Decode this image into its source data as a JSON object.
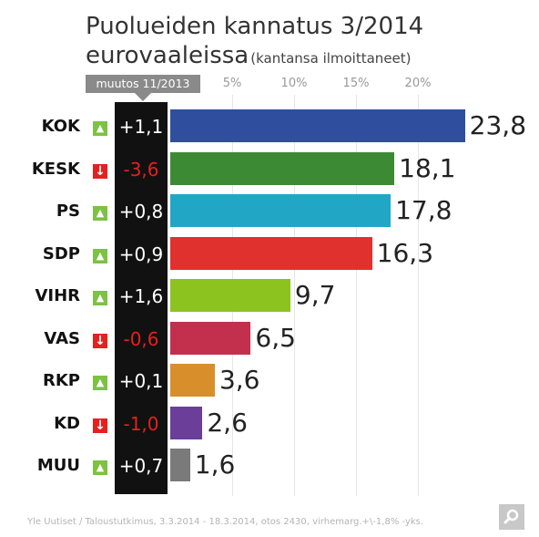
{
  "chart_data": {
    "type": "bar",
    "orientation": "horizontal",
    "title": "Puolueiden kannatus 3/2014",
    "title_line2": "eurovaaleissa",
    "subtitle": "(kantansa ilmoittaneet)",
    "change_header": "muutos 11/2013",
    "ticks": [
      "5%",
      "10%",
      "15%",
      "20%"
    ],
    "tick_values": [
      5,
      10,
      15,
      20
    ],
    "xlim": [
      0,
      25
    ],
    "grid": true,
    "categories": [
      "KOK",
      "KESK",
      "PS",
      "SDP",
      "VIHR",
      "VAS",
      "RKP",
      "KD",
      "MUU"
    ],
    "values": [
      23.8,
      18.1,
      17.8,
      16.3,
      9.7,
      6.5,
      3.6,
      2.6,
      1.6
    ],
    "value_labels": [
      "23,8",
      "18,1",
      "17,8",
      "16,3",
      "9,7",
      "6,5",
      "3,6",
      "2,6",
      "1,6"
    ],
    "changes": [
      "+1,1",
      "-3,6",
      "+0,8",
      "+0,9",
      "+1,6",
      "-0,6",
      "+0,1",
      "-1,0",
      "+0,7"
    ],
    "directions": [
      "up",
      "down",
      "up",
      "up",
      "up",
      "down",
      "up",
      "down",
      "up"
    ],
    "colors": [
      "#2f4f9e",
      "#3d8a35",
      "#22a6c5",
      "#e0312f",
      "#8cc31e",
      "#c2304e",
      "#d88f2b",
      "#6a3e99",
      "#7a7a7a"
    ],
    "up_color": "#7cc243",
    "down_color": "#e5201e",
    "up_icon": "arrow-up-icon",
    "down_icon": "arrow-down-icon",
    "source": "Yle Uutiset / Taloustutkimus, 3.3.2014 - 18.3.2014, otos 2430, virhemarg.+\\-1,8% -yks."
  },
  "search_icon": "search-icon"
}
